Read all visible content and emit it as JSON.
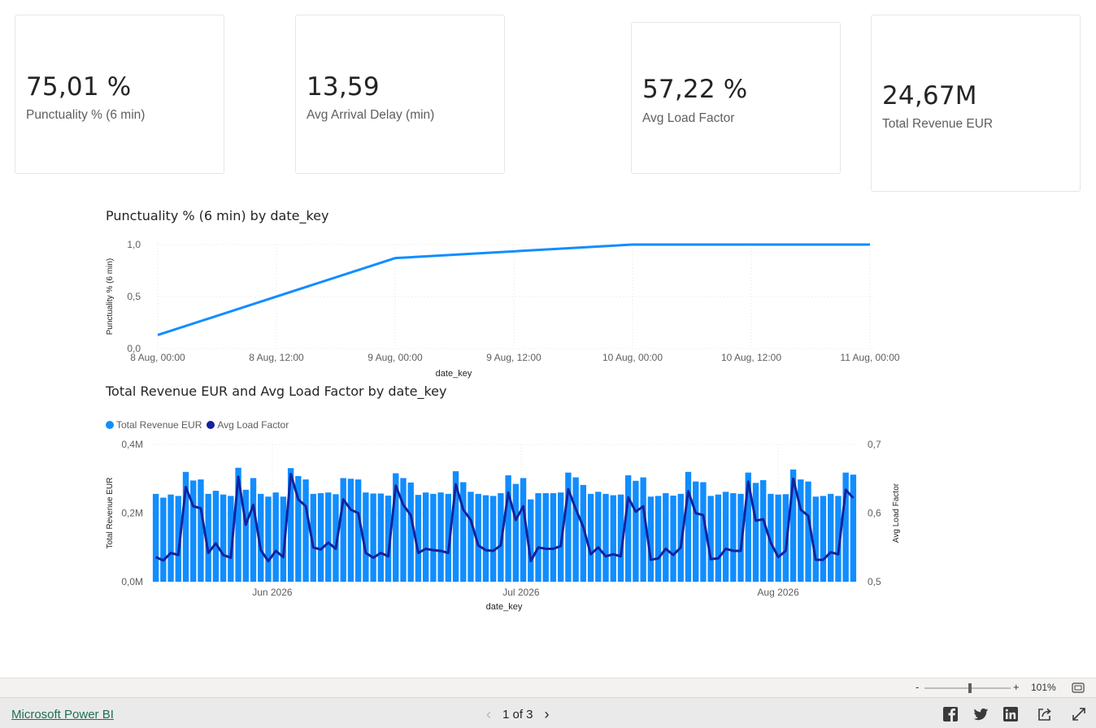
{
  "cards": [
    {
      "value": "75,01 %",
      "label": "Punctuality % (6 min)"
    },
    {
      "value": "13,59",
      "label": "Avg Arrival Delay (min)"
    },
    {
      "value": "57,22 %",
      "label": "Avg Load Factor"
    },
    {
      "value": "24,67M",
      "label": "Total Revenue EUR"
    }
  ],
  "charts": {
    "line_title": "Punctuality % (6 min) by date_key",
    "combo_title": "Total Revenue EUR and Avg Load Factor by date_key",
    "legend": [
      "Total Revenue EUR",
      "Avg Load Factor"
    ]
  },
  "colors": {
    "bar": "#118dff",
    "line": "#12239e",
    "punct_line": "#118dff"
  },
  "chart_data": [
    {
      "type": "line",
      "title": "Punctuality % (6 min) by date_key",
      "xlabel": "date_key",
      "ylabel": "Punctuality % (6 min)",
      "x_ticks": [
        "8 Aug, 00:00",
        "8 Aug, 12:00",
        "9 Aug, 00:00",
        "9 Aug, 12:00",
        "10 Aug, 00:00",
        "10 Aug, 12:00",
        "11 Aug, 00:00"
      ],
      "y_ticks": [
        "0,0",
        "0,5",
        "1,0"
      ],
      "ylim": [
        0,
        1
      ],
      "grid": true,
      "series": [
        {
          "x": [
            "2026-08-08",
            "2026-08-09",
            "2026-08-10",
            "2026-08-11"
          ],
          "values": [
            0.13,
            0.87,
            1.0,
            1.0
          ]
        }
      ]
    },
    {
      "type": "bar",
      "title": "Total Revenue EUR and Avg Load Factor by date_key",
      "xlabel": "date_key",
      "ylabel": "Total Revenue EUR",
      "y2label": "Avg Load Factor",
      "x_ticks": [
        "Jun 2026",
        "Jul 2026",
        "Aug 2026"
      ],
      "y_ticks": [
        "0,0M",
        "0,2M",
        "0,4M"
      ],
      "y2_ticks": [
        "0,5",
        "0,6",
        "0,7"
      ],
      "ylim": [
        0,
        0.4
      ],
      "y2lim": [
        0.5,
        0.7
      ],
      "legend_position": "top-left",
      "x_range": [
        "2026-05-18",
        "2026-08-10"
      ],
      "series": [
        {
          "name": "Total Revenue EUR",
          "type": "bar",
          "values": [
            0.256,
            0.245,
            0.254,
            0.25,
            0.32,
            0.295,
            0.298,
            0.256,
            0.265,
            0.254,
            0.25,
            0.332,
            0.268,
            0.302,
            0.256,
            0.248,
            0.26,
            0.248,
            0.331,
            0.308,
            0.298,
            0.256,
            0.258,
            0.26,
            0.255,
            0.302,
            0.3,
            0.298,
            0.26,
            0.257,
            0.257,
            0.251,
            0.316,
            0.302,
            0.289,
            0.253,
            0.26,
            0.256,
            0.26,
            0.256,
            0.322,
            0.29,
            0.262,
            0.256,
            0.252,
            0.25,
            0.258,
            0.31,
            0.285,
            0.302,
            0.24,
            0.258,
            0.258,
            0.258,
            0.26,
            0.318,
            0.304,
            0.282,
            0.256,
            0.262,
            0.256,
            0.252,
            0.254,
            0.31,
            0.294,
            0.304,
            0.248,
            0.25,
            0.258,
            0.251,
            0.256,
            0.32,
            0.292,
            0.29,
            0.25,
            0.254,
            0.262,
            0.258,
            0.256,
            0.318,
            0.288,
            0.296,
            0.256,
            0.254,
            0.255,
            0.327,
            0.298,
            0.292,
            0.248,
            0.25,
            0.256,
            0.25,
            0.318,
            0.312
          ]
        },
        {
          "name": "Avg Load Factor",
          "type": "line",
          "values": [
            0.536,
            0.531,
            0.542,
            0.539,
            0.638,
            0.61,
            0.607,
            0.542,
            0.556,
            0.539,
            0.535,
            0.653,
            0.583,
            0.612,
            0.546,
            0.53,
            0.545,
            0.536,
            0.657,
            0.62,
            0.61,
            0.55,
            0.547,
            0.557,
            0.548,
            0.62,
            0.605,
            0.6,
            0.542,
            0.535,
            0.542,
            0.537,
            0.64,
            0.612,
            0.597,
            0.542,
            0.548,
            0.546,
            0.545,
            0.542,
            0.642,
            0.605,
            0.59,
            0.553,
            0.546,
            0.545,
            0.553,
            0.63,
            0.59,
            0.61,
            0.53,
            0.55,
            0.548,
            0.548,
            0.552,
            0.635,
            0.606,
            0.58,
            0.54,
            0.55,
            0.537,
            0.54,
            0.537,
            0.623,
            0.602,
            0.61,
            0.532,
            0.534,
            0.548,
            0.539,
            0.55,
            0.632,
            0.6,
            0.597,
            0.533,
            0.534,
            0.548,
            0.545,
            0.545,
            0.646,
            0.589,
            0.591,
            0.557,
            0.536,
            0.545,
            0.65,
            0.605,
            0.596,
            0.532,
            0.532,
            0.543,
            0.54,
            0.634,
            0.622
          ]
        }
      ]
    }
  ],
  "zoom": {
    "minus": "-",
    "plus": "+",
    "level": "101%",
    "fraction": 0.53
  },
  "footer": {
    "brand": "Microsoft Power BI",
    "page": "1 of 3",
    "prev": "‹",
    "next": "›"
  },
  "icons": [
    "facebook-icon",
    "twitter-icon",
    "linkedin-icon",
    "share-icon",
    "fullscreen-icon",
    "fit-to-page-icon"
  ]
}
